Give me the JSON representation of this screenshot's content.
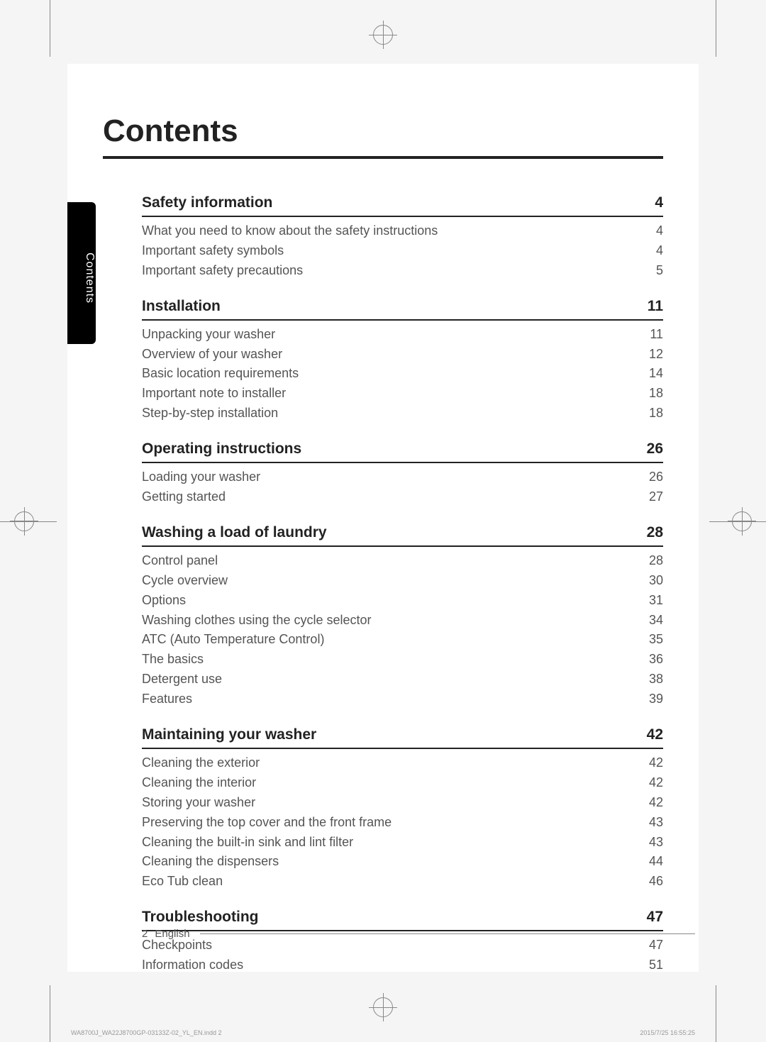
{
  "title": "Contents",
  "side_tab": "Contents",
  "page_number": "2",
  "language": "English",
  "imprint_left": "WA8700J_WA22J8700GP-03133Z-02_YL_EN.indd   2",
  "imprint_right": "2015/7/25   16:55:25",
  "style": {
    "page_bg": "#ffffff",
    "body_bg": "#f5f5f5",
    "title_color": "#222222",
    "title_fontsize": 44,
    "section_fontsize": 21,
    "entry_fontsize": 18,
    "entry_color": "#545454",
    "rule_color": "#222222",
    "sidetab_bg": "#000000",
    "sidetab_color": "#ffffff",
    "footer_color": "#555555",
    "imprint_color": "#999999"
  },
  "sections": [
    {
      "title": "Safety information",
      "page": "4",
      "entries": [
        {
          "label": "What you need to know about the safety instructions",
          "page": "4"
        },
        {
          "label": "Important safety symbols",
          "page": "4"
        },
        {
          "label": "Important safety precautions",
          "page": "5"
        }
      ]
    },
    {
      "title": "Installation",
      "page": "11",
      "entries": [
        {
          "label": "Unpacking your washer",
          "page": "11"
        },
        {
          "label": "Overview of your washer",
          "page": "12"
        },
        {
          "label": "Basic location requirements",
          "page": "14"
        },
        {
          "label": "Important note to installer",
          "page": "18"
        },
        {
          "label": "Step-by-step installation",
          "page": "18"
        }
      ]
    },
    {
      "title": "Operating instructions",
      "page": "26",
      "entries": [
        {
          "label": "Loading your washer",
          "page": "26"
        },
        {
          "label": "Getting started",
          "page": "27"
        }
      ]
    },
    {
      "title": "Washing a load of laundry",
      "page": "28",
      "entries": [
        {
          "label": "Control panel",
          "page": "28"
        },
        {
          "label": "Cycle overview",
          "page": "30"
        },
        {
          "label": "Options",
          "page": "31"
        },
        {
          "label": "Washing clothes using the cycle selector",
          "page": "34"
        },
        {
          "label": "ATC (Auto Temperature Control)",
          "page": "35"
        },
        {
          "label": "The basics",
          "page": "36"
        },
        {
          "label": "Detergent use",
          "page": "38"
        },
        {
          "label": "Features",
          "page": "39"
        }
      ]
    },
    {
      "title": "Maintaining your washer",
      "page": "42",
      "entries": [
        {
          "label": "Cleaning the exterior",
          "page": "42"
        },
        {
          "label": "Cleaning the interior",
          "page": "42"
        },
        {
          "label": "Storing your washer",
          "page": "42"
        },
        {
          "label": "Preserving the top cover and the front frame",
          "page": "43"
        },
        {
          "label": "Cleaning the built-in sink and lint filter",
          "page": "43"
        },
        {
          "label": "Cleaning the dispensers",
          "page": "44"
        },
        {
          "label": "Eco Tub clean",
          "page": "46"
        }
      ]
    },
    {
      "title": "Troubleshooting",
      "page": "47",
      "entries": [
        {
          "label": "Checkpoints",
          "page": "47"
        },
        {
          "label": "Information codes",
          "page": "51"
        }
      ]
    }
  ]
}
